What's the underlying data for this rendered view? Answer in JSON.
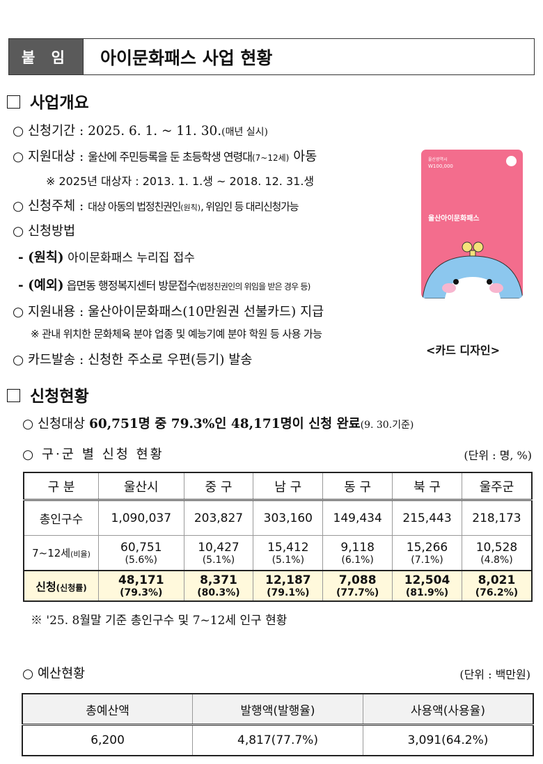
{
  "header": {
    "tag": "붙 임",
    "title": "아이문화패스 사업 현황"
  },
  "section1": {
    "title": "사업개요",
    "items": [
      {
        "label": "신청기간 : ",
        "text": "2025. 6. 1. ~ 11. 30.",
        "note": "(매년 실시)"
      },
      {
        "label": "지원대상 : ",
        "text": "울산에 주민등록을 둔 초등학생 연령대",
        "note": "(7~12세)",
        "tail": " 아동"
      },
      {
        "text": "※ 2025년 대상자 : 2013. 1. 1.생 ~ 2018. 12. 31.생"
      },
      {
        "label": "신청주체 : ",
        "text": "대상 아동의 법정친권인",
        "note": "(원칙)",
        "tail": ", 위임인 등 대리신청가능"
      },
      {
        "label": "신청방법"
      },
      {
        "prefix": "- (원칙)",
        "text": " 아이문화패스 누리집 접수"
      },
      {
        "prefix": "- (예외)",
        "text": " 읍면동 행정복지센터 방문접수",
        "note": "(법정친권인의 위임을 받은 경우 등)"
      },
      {
        "label": "지원내용 : ",
        "text": "울산아이문화패스(10만원권 선불카드) 지급"
      },
      {
        "text": "※ 관내 위치한 문화체육 분야 업종 및 예능기예 분야 학원 등 사용 가능"
      },
      {
        "label": "카드발송 : ",
        "text": "신청한 주소로 우편(등기) 발송"
      }
    ],
    "card": {
      "issuer": "울산광역시",
      "amount": "W100,000",
      "name": "울산아이문화패스",
      "caption": "<카드 디자인>"
    }
  },
  "section2": {
    "title": "신청현황",
    "summary": {
      "a": "신청대상 ",
      "b": "60,751명 중 79.3%인 48,171명이 신청 완료",
      "c": "(9. 30.기준)"
    },
    "district_title": "구·군 별 신청 현황",
    "district_unit": "(단위 : 명, %)",
    "table": {
      "headers": [
        "구 분",
        "울산시",
        "중  구",
        "남  구",
        "동  구",
        "북  구",
        "울주군"
      ],
      "rows": [
        {
          "label": "총인구수",
          "values": [
            "1,090,037",
            "203,827",
            "303,160",
            "149,434",
            "215,443",
            "218,173"
          ]
        },
        {
          "label": "7~12세",
          "label_note": "(비율)",
          "values": [
            "60,751",
            "10,427",
            "15,412",
            "9,118",
            "15,266",
            "10,528"
          ],
          "pcts": [
            "(5.6%)",
            "(5.1%)",
            "(5.1%)",
            "(6.1%)",
            "(7.1%)",
            "(4.8%)"
          ]
        },
        {
          "label": "신청",
          "label_note": "(신청률)",
          "values": [
            "48,171",
            "8,371",
            "12,187",
            "7,088",
            "12,504",
            "8,021"
          ],
          "pcts": [
            "(79.3%)",
            "(80.3%)",
            "(79.1%)",
            "(77.7%)",
            "(81.9%)",
            "(76.2%)"
          ]
        }
      ]
    },
    "note": "※ '25. 8월말 기준 총인구수 및 7~12세 인구 현황",
    "budget_title": "예산현황",
    "budget_unit": "(단위 : 백만원)",
    "budget": {
      "headers": [
        "총예산액",
        "발행액(발행율)",
        "사용액(사용율)"
      ],
      "values": [
        "6,200",
        "4,817(77.7%)",
        "3,091(64.2%)"
      ]
    }
  }
}
